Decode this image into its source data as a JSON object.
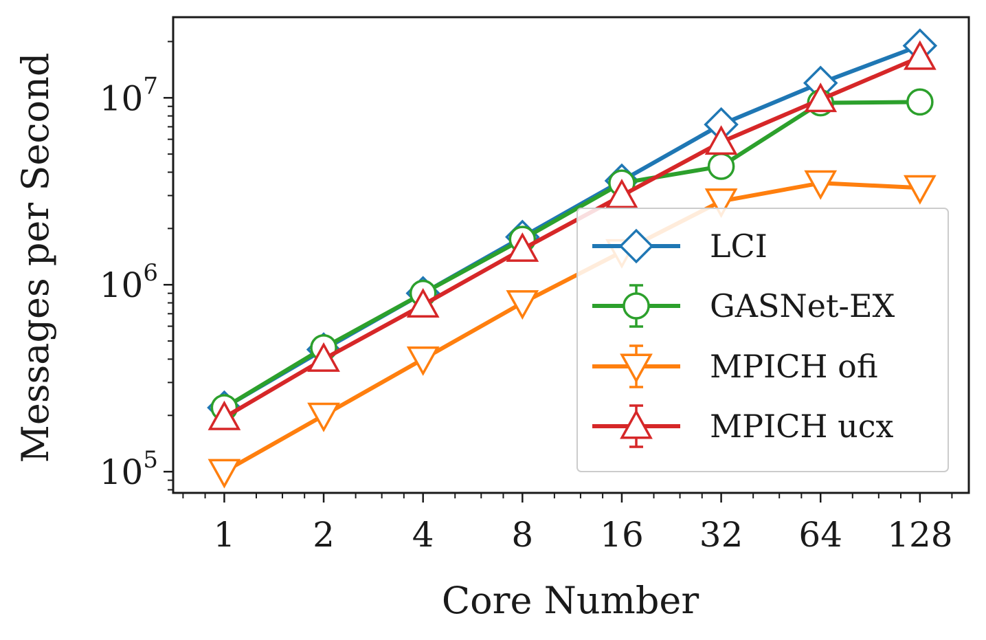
{
  "chart_data": {
    "type": "line",
    "xscale": "log2",
    "yscale": "log10",
    "x": [
      1,
      2,
      4,
      8,
      16,
      32,
      64,
      128
    ],
    "xticklabels": [
      "1",
      "2",
      "4",
      "8",
      "16",
      "32",
      "64",
      "128"
    ],
    "xlabel": "Core Number",
    "ylabel": "Messages per Second",
    "yticks": [
      {
        "value": 100000,
        "base": "10",
        "exp": "5"
      },
      {
        "value": 1000000,
        "base": "10",
        "exp": "6"
      },
      {
        "value": 10000000,
        "base": "10",
        "exp": "7"
      }
    ],
    "xlim": [
      0.7,
      180
    ],
    "ylim": [
      77000,
      27000000
    ],
    "legend_position": "lower right",
    "series": [
      {
        "name": "LCI",
        "color": "#1f77b4",
        "marker": "diamond",
        "values": [
          220000,
          450000,
          900000,
          1800000,
          3600000,
          7200000,
          12000000,
          19000000
        ]
      },
      {
        "name": "GASNet-EX",
        "color": "#2ca02c",
        "marker": "circle",
        "values": [
          220000,
          460000,
          900000,
          1750000,
          3500000,
          4300000,
          9400000,
          9500000
        ]
      },
      {
        "name": "MPICH ofi",
        "color": "#ff7f0e",
        "marker": "triangle-down",
        "values": [
          100000,
          200000,
          400000,
          800000,
          1500000,
          2800000,
          3500000,
          3300000
        ]
      },
      {
        "name": "MPICH ucx",
        "color": "#d62728",
        "marker": "triangle-up",
        "values": [
          195000,
          400000,
          780000,
          1550000,
          3000000,
          5800000,
          9800000,
          16500000
        ]
      }
    ]
  }
}
